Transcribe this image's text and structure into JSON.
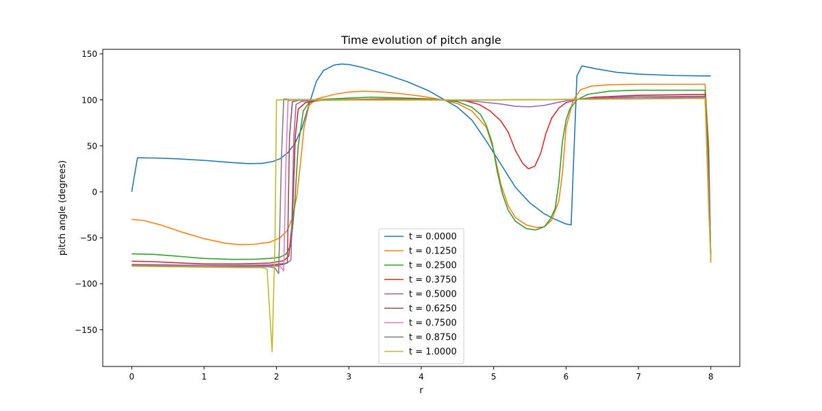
{
  "chart_data": {
    "type": "line",
    "title": "Time evolution of pitch angle",
    "xlabel": "r",
    "ylabel": "pitch angle (degrees)",
    "xlim": [
      -0.4,
      8.4
    ],
    "ylim": [
      -190,
      155
    ],
    "xticks": [
      0,
      1,
      2,
      3,
      4,
      5,
      6,
      7,
      8
    ],
    "yticks": [
      -150,
      -100,
      -50,
      0,
      50,
      100,
      150
    ],
    "xtick_labels": [
      "0",
      "1",
      "2",
      "3",
      "4",
      "5",
      "6",
      "7",
      "8"
    ],
    "ytick_labels": [
      "−150",
      "−100",
      "−50",
      "0",
      "50",
      "100",
      "150"
    ],
    "grid": false,
    "legend_position": "lower center",
    "series": [
      {
        "name": "t = 0.0000",
        "color": "#1f77b4",
        "points": [
          [
            0,
            0
          ],
          [
            0.08,
            37
          ],
          [
            0.3,
            36.8
          ],
          [
            0.6,
            36
          ],
          [
            1.0,
            34.2
          ],
          [
            1.4,
            31.7
          ],
          [
            1.6,
            30.7
          ],
          [
            1.8,
            30.9
          ],
          [
            1.95,
            33
          ],
          [
            2.05,
            36
          ],
          [
            2.15,
            42
          ],
          [
            2.25,
            52
          ],
          [
            2.35,
            69
          ],
          [
            2.45,
            95
          ],
          [
            2.55,
            120
          ],
          [
            2.65,
            132
          ],
          [
            2.8,
            138
          ],
          [
            2.9,
            139
          ],
          [
            3.0,
            138.5
          ],
          [
            3.2,
            135
          ],
          [
            3.5,
            128
          ],
          [
            3.8,
            120
          ],
          [
            4.1,
            110
          ],
          [
            4.3,
            101
          ],
          [
            4.5,
            92
          ],
          [
            4.7,
            78
          ],
          [
            4.9,
            55
          ],
          [
            5.1,
            30
          ],
          [
            5.3,
            5
          ],
          [
            5.5,
            -12
          ],
          [
            5.7,
            -24
          ],
          [
            5.85,
            -30
          ],
          [
            6.0,
            -35
          ],
          [
            6.07,
            -36
          ],
          [
            6.15,
            126
          ],
          [
            6.22,
            137
          ],
          [
            6.4,
            134
          ],
          [
            6.7,
            130
          ],
          [
            7.0,
            128
          ],
          [
            7.5,
            126.5
          ],
          [
            8.0,
            126
          ]
        ]
      },
      {
        "name": "t = 0.1250",
        "color": "#ff7f0e",
        "points": [
          [
            0,
            -30
          ],
          [
            0.15,
            -31
          ],
          [
            0.4,
            -36
          ],
          [
            0.7,
            -44
          ],
          [
            1.0,
            -51
          ],
          [
            1.3,
            -56
          ],
          [
            1.5,
            -57.5
          ],
          [
            1.7,
            -57
          ],
          [
            1.9,
            -55
          ],
          [
            2.05,
            -50
          ],
          [
            2.15,
            -42
          ],
          [
            2.22,
            -28
          ],
          [
            2.28,
            -5
          ],
          [
            2.33,
            30
          ],
          [
            2.38,
            70
          ],
          [
            2.45,
            94
          ],
          [
            2.55,
            101
          ],
          [
            2.8,
            106
          ],
          [
            3.0,
            108.5
          ],
          [
            3.2,
            109.5
          ],
          [
            3.5,
            108.5
          ],
          [
            3.8,
            106
          ],
          [
            4.0,
            104
          ],
          [
            4.3,
            100
          ],
          [
            4.5,
            96
          ],
          [
            4.7,
            88
          ],
          [
            4.9,
            70
          ],
          [
            5.0,
            45
          ],
          [
            5.1,
            8
          ],
          [
            5.2,
            -15
          ],
          [
            5.3,
            -28
          ],
          [
            5.45,
            -36
          ],
          [
            5.6,
            -39
          ],
          [
            5.7,
            -38
          ],
          [
            5.8,
            -31
          ],
          [
            5.9,
            -10
          ],
          [
            5.95,
            20
          ],
          [
            6.0,
            70
          ],
          [
            6.05,
            85
          ],
          [
            6.1,
            100
          ],
          [
            6.2,
            111
          ],
          [
            6.35,
            115
          ],
          [
            6.6,
            116.5
          ],
          [
            7.0,
            117
          ],
          [
            7.92,
            117
          ],
          [
            7.97,
            50
          ],
          [
            8.0,
            -77
          ]
        ]
      },
      {
        "name": "t = 0.2500",
        "color": "#2ca02c",
        "points": [
          [
            0,
            -67.5
          ],
          [
            0.3,
            -68
          ],
          [
            0.7,
            -70.5
          ],
          [
            1.0,
            -72.5
          ],
          [
            1.4,
            -73.5
          ],
          [
            1.7,
            -73.3
          ],
          [
            1.9,
            -72.5
          ],
          [
            2.05,
            -71
          ],
          [
            2.13,
            -68
          ],
          [
            2.2,
            -58
          ],
          [
            2.25,
            -15
          ],
          [
            2.3,
            50
          ],
          [
            2.37,
            88
          ],
          [
            2.45,
            97
          ],
          [
            2.6,
            100.5
          ],
          [
            3.0,
            102
          ],
          [
            3.3,
            103
          ],
          [
            3.8,
            102
          ],
          [
            4.1,
            101
          ],
          [
            4.3,
            100
          ],
          [
            4.5,
            98
          ],
          [
            4.7,
            92
          ],
          [
            4.82,
            84
          ],
          [
            4.9,
            72
          ],
          [
            4.98,
            53
          ],
          [
            5.05,
            22
          ],
          [
            5.12,
            -2
          ],
          [
            5.2,
            -20
          ],
          [
            5.3,
            -32
          ],
          [
            5.45,
            -40
          ],
          [
            5.58,
            -41.5
          ],
          [
            5.7,
            -38
          ],
          [
            5.78,
            -30
          ],
          [
            5.85,
            -18
          ],
          [
            5.9,
            10
          ],
          [
            5.95,
            55
          ],
          [
            6.0,
            78
          ],
          [
            6.05,
            90
          ],
          [
            6.15,
            100
          ],
          [
            6.3,
            106
          ],
          [
            6.6,
            109.5
          ],
          [
            7.0,
            110.5
          ],
          [
            7.92,
            110.5
          ],
          [
            7.97,
            40
          ],
          [
            8.0,
            -77
          ]
        ]
      },
      {
        "name": "t = 0.3750",
        "color": "#d62728",
        "points": [
          [
            0,
            -75.5
          ],
          [
            0.3,
            -76
          ],
          [
            0.7,
            -77.5
          ],
          [
            1.0,
            -78.5
          ],
          [
            1.5,
            -78.5
          ],
          [
            1.9,
            -77.5
          ],
          [
            2.1,
            -75
          ],
          [
            2.17,
            -70
          ],
          [
            2.22,
            -30
          ],
          [
            2.26,
            60
          ],
          [
            2.3,
            90
          ],
          [
            2.4,
            97
          ],
          [
            2.6,
            99.5
          ],
          [
            3.0,
            100.5
          ],
          [
            3.5,
            101
          ],
          [
            4.0,
            100.5
          ],
          [
            4.3,
            100
          ],
          [
            4.6,
            99
          ],
          [
            4.8,
            95
          ],
          [
            4.95,
            88
          ],
          [
            5.1,
            77
          ],
          [
            5.2,
            65
          ],
          [
            5.3,
            45
          ],
          [
            5.4,
            31
          ],
          [
            5.48,
            25
          ],
          [
            5.57,
            28
          ],
          [
            5.65,
            42
          ],
          [
            5.72,
            63
          ],
          [
            5.8,
            80
          ],
          [
            5.9,
            91
          ],
          [
            6.0,
            97
          ],
          [
            6.15,
            100.5
          ],
          [
            6.4,
            103
          ],
          [
            7.0,
            105
          ],
          [
            7.92,
            106
          ],
          [
            7.97,
            30
          ],
          [
            8.0,
            -77
          ]
        ]
      },
      {
        "name": "t = 0.5000",
        "color": "#9467bd",
        "points": [
          [
            0,
            -79
          ],
          [
            0.5,
            -79.5
          ],
          [
            1.0,
            -80
          ],
          [
            1.5,
            -80
          ],
          [
            1.9,
            -79.5
          ],
          [
            2.15,
            -77.5
          ],
          [
            2.2,
            -74
          ],
          [
            2.24,
            60
          ],
          [
            2.27,
            95
          ],
          [
            2.35,
            98.5
          ],
          [
            2.6,
            99.5
          ],
          [
            3.0,
            100
          ],
          [
            4.0,
            100
          ],
          [
            4.5,
            99.5
          ],
          [
            4.8,
            98
          ],
          [
            5.1,
            95.5
          ],
          [
            5.3,
            93
          ],
          [
            5.5,
            92.5
          ],
          [
            5.7,
            94
          ],
          [
            5.9,
            97.5
          ],
          [
            6.1,
            100.5
          ],
          [
            6.4,
            102
          ],
          [
            7.0,
            103.5
          ],
          [
            7.92,
            104
          ],
          [
            7.97,
            20
          ],
          [
            8.0,
            -77
          ]
        ]
      },
      {
        "name": "t = 0.6250",
        "color": "#8c564b",
        "points": [
          [
            0,
            -79.5
          ],
          [
            0.5,
            -80
          ],
          [
            1.0,
            -81
          ],
          [
            1.5,
            -81
          ],
          [
            1.9,
            -80.5
          ],
          [
            2.1,
            -79
          ],
          [
            2.15,
            -77
          ],
          [
            2.18,
            60
          ],
          [
            2.22,
            98
          ],
          [
            2.3,
            99.5
          ],
          [
            3.0,
            100
          ],
          [
            4.0,
            100
          ],
          [
            5.0,
            100
          ],
          [
            6.0,
            100.5
          ],
          [
            6.5,
            101.5
          ],
          [
            7.0,
            102
          ],
          [
            7.92,
            103
          ],
          [
            7.97,
            10
          ],
          [
            8.0,
            -77
          ]
        ]
      },
      {
        "name": "t = 0.7500",
        "color": "#e377c2",
        "points": [
          [
            0,
            -80
          ],
          [
            0.5,
            -80.5
          ],
          [
            1.0,
            -81
          ],
          [
            1.5,
            -81.5
          ],
          [
            1.9,
            -81
          ],
          [
            2.05,
            -81
          ],
          [
            2.1,
            -86
          ],
          [
            2.13,
            30
          ],
          [
            2.16,
            99
          ],
          [
            2.25,
            100
          ],
          [
            3.0,
            100
          ],
          [
            4.0,
            100
          ],
          [
            5.0,
            100
          ],
          [
            6.0,
            100.5
          ],
          [
            7.0,
            101.5
          ],
          [
            7.92,
            102.5
          ],
          [
            7.97,
            0
          ],
          [
            8.0,
            -77
          ]
        ]
      },
      {
        "name": "t = 0.8750",
        "color": "#7f7f7f",
        "points": [
          [
            0,
            -80.5
          ],
          [
            0.5,
            -81
          ],
          [
            1.0,
            -81.5
          ],
          [
            1.5,
            -82
          ],
          [
            1.9,
            -81.5
          ],
          [
            1.98,
            -83
          ],
          [
            2.03,
            -89
          ],
          [
            2.07,
            40
          ],
          [
            2.1,
            101
          ],
          [
            2.18,
            100.5
          ],
          [
            3.0,
            100
          ],
          [
            4.0,
            100
          ],
          [
            5.0,
            100
          ],
          [
            6.0,
            100.5
          ],
          [
            7.0,
            101
          ],
          [
            7.92,
            102
          ],
          [
            7.97,
            -10
          ],
          [
            8.0,
            -77
          ]
        ]
      },
      {
        "name": "t = 1.0000",
        "color": "#bcbd22",
        "points": [
          [
            0,
            -81
          ],
          [
            0.5,
            -81.5
          ],
          [
            1.0,
            -82
          ],
          [
            1.5,
            -82.5
          ],
          [
            1.8,
            -82.5
          ],
          [
            1.87,
            -84
          ],
          [
            1.94,
            -174
          ],
          [
            1.98,
            -50
          ],
          [
            2.0,
            100
          ],
          [
            2.1,
            100
          ],
          [
            3.0,
            100
          ],
          [
            4.0,
            100
          ],
          [
            5.0,
            100
          ],
          [
            6.0,
            100.5
          ],
          [
            7.0,
            101
          ],
          [
            7.92,
            101.5
          ],
          [
            7.97,
            -20
          ],
          [
            8.0,
            -77
          ]
        ]
      }
    ]
  }
}
